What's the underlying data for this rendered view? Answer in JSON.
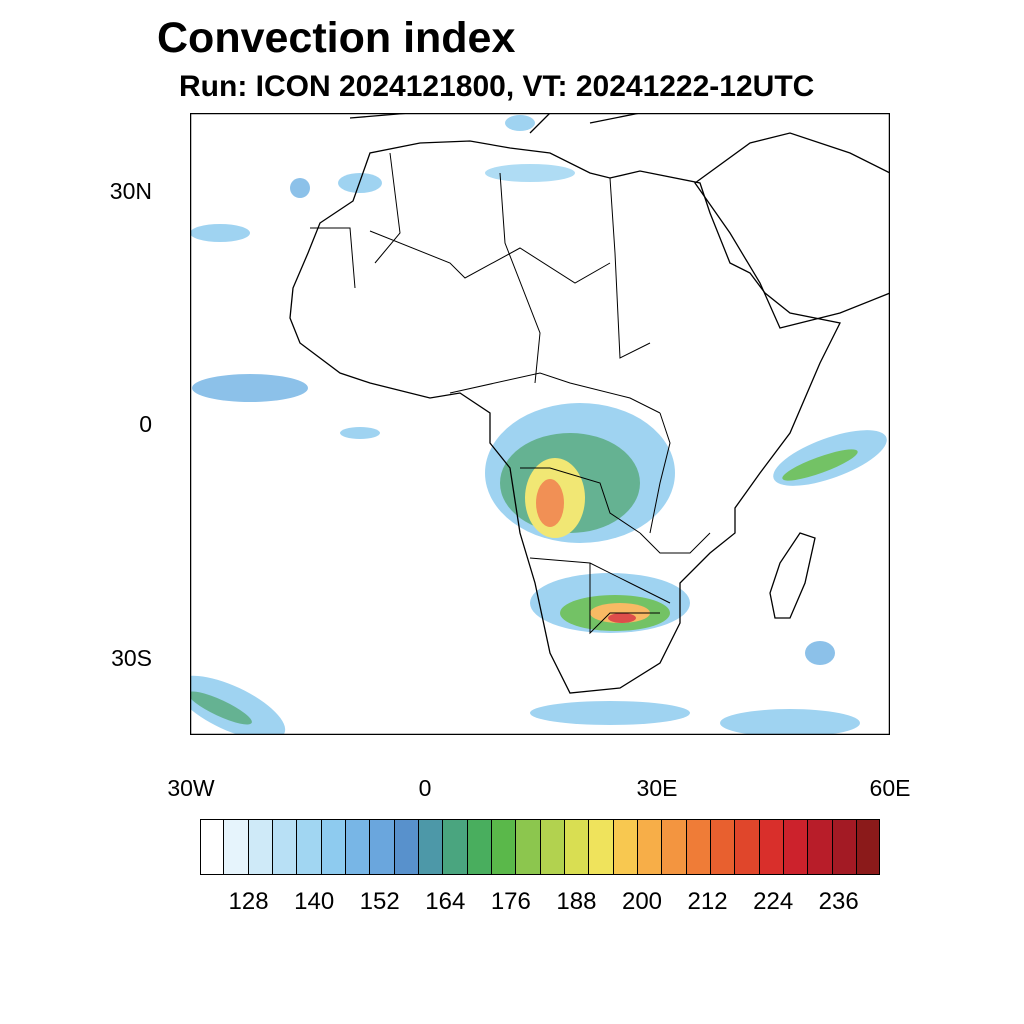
{
  "title": "Convection index",
  "subtitle": "Run: ICON 2024121800,  VT: 20241222-12UTC",
  "map": {
    "lat_labels": [
      "30N",
      "0",
      "30S"
    ],
    "lon_labels": [
      "30W",
      "0",
      "30E",
      "60E"
    ],
    "extent": {
      "lon_min": -30,
      "lon_max": 60,
      "lat_min": -40,
      "lat_max": 40
    }
  },
  "colorbar": {
    "labels": [
      "128",
      "140",
      "152",
      "164",
      "176",
      "188",
      "200",
      "212",
      "224",
      "236"
    ],
    "colors": [
      "#ffffff",
      "#e6f4fc",
      "#cfeaf8",
      "#b8e0f5",
      "#a1d6f2",
      "#8ecbef",
      "#78b6e6",
      "#6aa6dd",
      "#5891cc",
      "#4d98a8",
      "#4aa57f",
      "#49ae5e",
      "#5ab84a",
      "#8cc64e",
      "#b2d24f",
      "#d9de52",
      "#efe35c",
      "#f8c850",
      "#f7ae48",
      "#f39540",
      "#ef7c37",
      "#e8602f",
      "#e0462b",
      "#d92f2b",
      "#cc222c",
      "#b81d29",
      "#a31a24",
      "#8b1a1a"
    ]
  }
}
